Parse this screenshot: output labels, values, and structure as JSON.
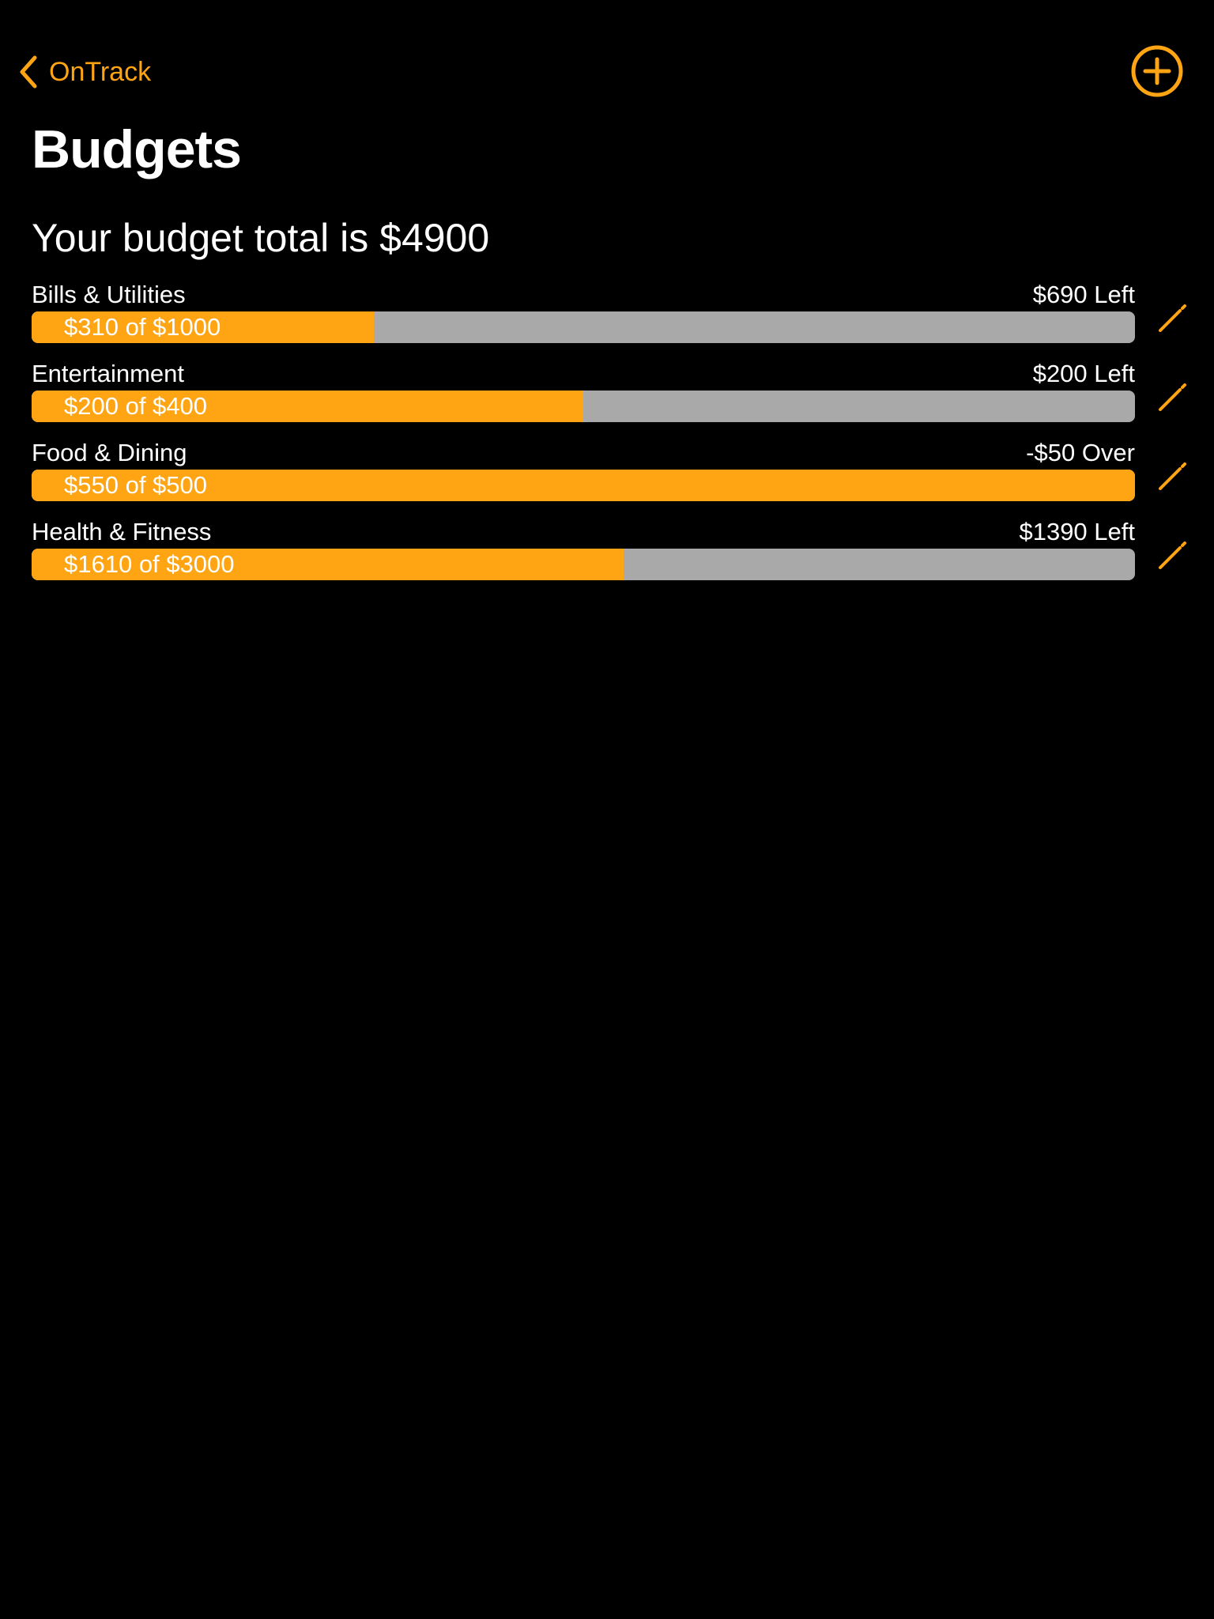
{
  "colors": {
    "accent": "#ffa412",
    "track": "#a9a9a9",
    "background": "#000000",
    "text": "#ffffff"
  },
  "nav": {
    "back_label": "OnTrack",
    "back_icon": "chevron-left-icon",
    "add_icon": "plus-circle-icon"
  },
  "title": "Budgets",
  "summary": "Your budget total is $4900",
  "budgets": [
    {
      "name": "Bills & Utilities",
      "remaining": "$690 Left",
      "progress_label": "$310 of $1000",
      "spent": 310,
      "limit": 1000,
      "edit_icon": "pencil-icon"
    },
    {
      "name": "Entertainment",
      "remaining": "$200 Left",
      "progress_label": "$200 of $400",
      "spent": 200,
      "limit": 400,
      "edit_icon": "pencil-icon"
    },
    {
      "name": "Food & Dining",
      "remaining": "-$50 Over",
      "progress_label": "$550 of $500",
      "spent": 550,
      "limit": 500,
      "edit_icon": "pencil-icon"
    },
    {
      "name": "Health & Fitness",
      "remaining": "$1390 Left",
      "progress_label": "$1610 of $3000",
      "spent": 1610,
      "limit": 3000,
      "edit_icon": "pencil-icon"
    }
  ]
}
